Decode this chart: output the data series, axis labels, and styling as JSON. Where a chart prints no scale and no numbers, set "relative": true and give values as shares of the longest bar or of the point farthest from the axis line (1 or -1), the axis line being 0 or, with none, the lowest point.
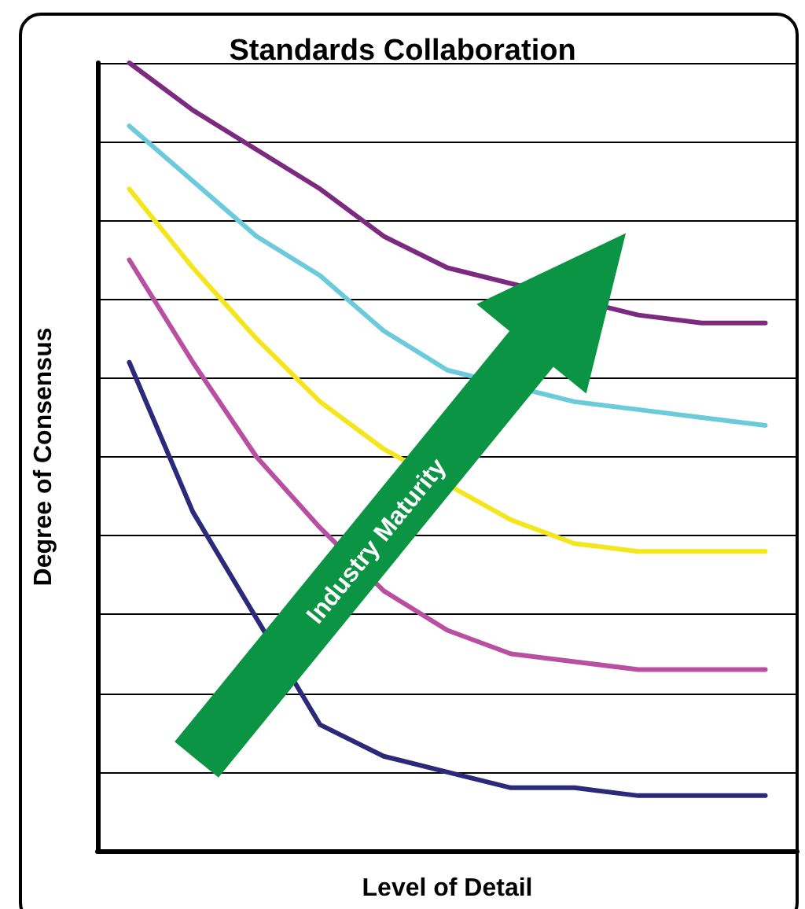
{
  "chart_data": {
    "type": "line",
    "title": "Standards Collaboration",
    "xlabel": "Level of Detail",
    "ylabel": "Degree of Consensus",
    "relative": true,
    "grid": "y",
    "marker": "none",
    "line_style": "solid",
    "annotations": [
      "Industry Maturity"
    ],
    "categories": [
      null,
      null,
      null,
      null,
      null,
      null,
      null,
      null,
      null,
      null,
      null
    ],
    "series": [
      {
        "color": "#7b2a7f",
        "values": [
          1.0,
          0.94,
          0.89,
          0.84,
          0.78,
          0.74,
          null,
          null,
          0.68,
          0.67,
          0.67
        ]
      },
      {
        "color": "#6ccbdb",
        "values": [
          0.92,
          0.85,
          0.78,
          0.73,
          0.66,
          0.61,
          null,
          0.57,
          0.56,
          0.55,
          0.54
        ]
      },
      {
        "color": "#f4e61c",
        "values": [
          0.84,
          0.74,
          0.65,
          0.57,
          0.51,
          null,
          0.42,
          0.39,
          0.38,
          0.38,
          0.38
        ]
      },
      {
        "color": "#b94fa0",
        "values": [
          0.75,
          0.62,
          0.5,
          0.41,
          0.33,
          0.28,
          0.25,
          0.24,
          0.23,
          0.23,
          0.23
        ]
      },
      {
        "color": "#2b2a7a",
        "values": [
          0.62,
          0.43,
          null,
          0.16,
          0.12,
          0.1,
          0.08,
          0.08,
          0.07,
          0.07,
          0.07
        ]
      }
    ]
  }
}
